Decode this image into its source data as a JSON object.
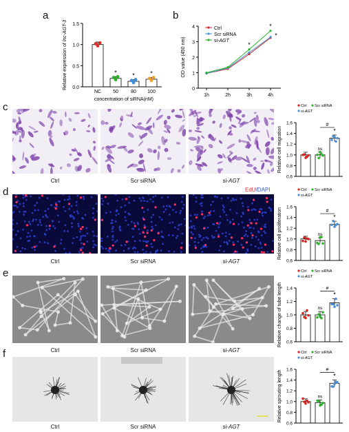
{
  "colors": {
    "ctrl": "#d9231f",
    "scr": "#4a8fd6",
    "si": "#2bb32b",
    "bar_c": "#2f7fd2",
    "bar_a_nc": "#e0302a",
    "bar_a_50": "#2bb32b",
    "bar_a_80": "#3b8fe0",
    "bar_a_100": "#f0a030"
  },
  "panels": {
    "a": {
      "letter": "a"
    },
    "b": {
      "letter": "b"
    },
    "c": {
      "letter": "c",
      "images": [
        "Ctrl",
        "Scr siRNA",
        "si-AGT"
      ]
    },
    "d": {
      "letter": "d",
      "images": [
        "Ctrl",
        "Scr siRNA",
        "si-AGT"
      ],
      "stain": "EdU/DAPI"
    },
    "e": {
      "letter": "e",
      "images": [
        "Ctrl",
        "Scr siRNA",
        "si-AGT"
      ]
    },
    "f": {
      "letter": "f",
      "images": [
        "Ctrl",
        "Scr siRNA",
        "si-AGT"
      ]
    }
  },
  "chart_data": [
    {
      "id": "a",
      "type": "bar",
      "ylabel": "Relative expression of lnc-AGT-3",
      "xlabel": "concentration of siRNA(nM)",
      "categories": [
        "NC",
        "50",
        "80",
        "100"
      ],
      "values": [
        1.0,
        0.2,
        0.13,
        0.18
      ],
      "ylim": [
        0,
        1.5
      ],
      "yticks": [
        "0.0",
        "0.5",
        "1.0",
        "1.5"
      ],
      "annotations": [
        "",
        "*",
        "*",
        "*"
      ]
    },
    {
      "id": "b",
      "type": "line",
      "ylabel": "OD value (450 nm)",
      "categories": [
        "1h",
        "2h",
        "3h",
        "4h"
      ],
      "ylim": [
        0,
        4
      ],
      "yticks": [
        "0",
        "1",
        "2",
        "3",
        "4"
      ],
      "legend": [
        "Ctrl",
        "Scr siRNA",
        "si-AGT"
      ],
      "series": [
        {
          "name": "Ctrl",
          "values": [
            0.95,
            1.25,
            2.2,
            3.25
          ]
        },
        {
          "name": "Scr siRNA",
          "values": [
            0.95,
            1.3,
            2.3,
            3.3
          ]
        },
        {
          "name": "si-AGT",
          "values": [
            1.0,
            1.35,
            2.5,
            3.7
          ]
        }
      ],
      "annotations": [
        "",
        "",
        "*",
        "*"
      ]
    },
    {
      "id": "c",
      "type": "bar",
      "ylabel": "Relative cell migration",
      "legend": [
        "Ctrl",
        "Scr siRNA",
        "si-AGT"
      ],
      "categories": [
        "Ctrl",
        "Scr siRNA",
        "si-AGT"
      ],
      "values": [
        1.0,
        1.0,
        1.31
      ],
      "ylim": [
        0.6,
        1.6
      ],
      "yticks": [
        "0.6",
        "0.8",
        "1.0",
        "1.2",
        "1.4",
        "1.6"
      ],
      "annotations": [
        "",
        "ns",
        "*"
      ],
      "hash": "#"
    },
    {
      "id": "d",
      "type": "bar",
      "ylabel": "Relative cell proliferation",
      "legend": [
        "Ctrl",
        "Scr siRNA",
        "si-AGT"
      ],
      "categories": [
        "Ctrl",
        "Scr siRNA",
        "si-AGT"
      ],
      "values": [
        1.0,
        0.97,
        1.27
      ],
      "ylim": [
        0.6,
        1.6
      ],
      "yticks": [
        "0.6",
        "0.8",
        "1.0",
        "1.2",
        "1.4",
        "1.6"
      ],
      "annotations": [
        "",
        "ns",
        "*"
      ],
      "hash": "#"
    },
    {
      "id": "e",
      "type": "bar",
      "ylabel": "Relative change of tube length",
      "legend": [
        "Ctrl",
        "Scr siRNA",
        "si-AGT"
      ],
      "categories": [
        "Ctrl",
        "Scr siRNA",
        "si-AGT"
      ],
      "values": [
        1.0,
        1.0,
        1.18
      ],
      "ylim": [
        0.6,
        1.4
      ],
      "yticks": [
        "0.6",
        "0.8",
        "1.0",
        "1.2",
        "1.4"
      ],
      "annotations": [
        "",
        "ns",
        "*"
      ],
      "hash": "#"
    },
    {
      "id": "f",
      "type": "bar",
      "ylabel": "Relative sprouting length",
      "legend": [
        "Ctrl",
        "Scr siRNA",
        "si-AGT"
      ],
      "categories": [
        "Ctrl",
        "Scr siRNA",
        "si-AGT"
      ],
      "values": [
        1.0,
        0.98,
        1.34
      ],
      "ylim": [
        0.6,
        1.6
      ],
      "yticks": [
        "0.6",
        "0.8",
        "1.0",
        "1.2",
        "1.4",
        "1.6"
      ],
      "annotations": [
        "",
        "ns",
        "*"
      ],
      "hash": "#"
    }
  ]
}
